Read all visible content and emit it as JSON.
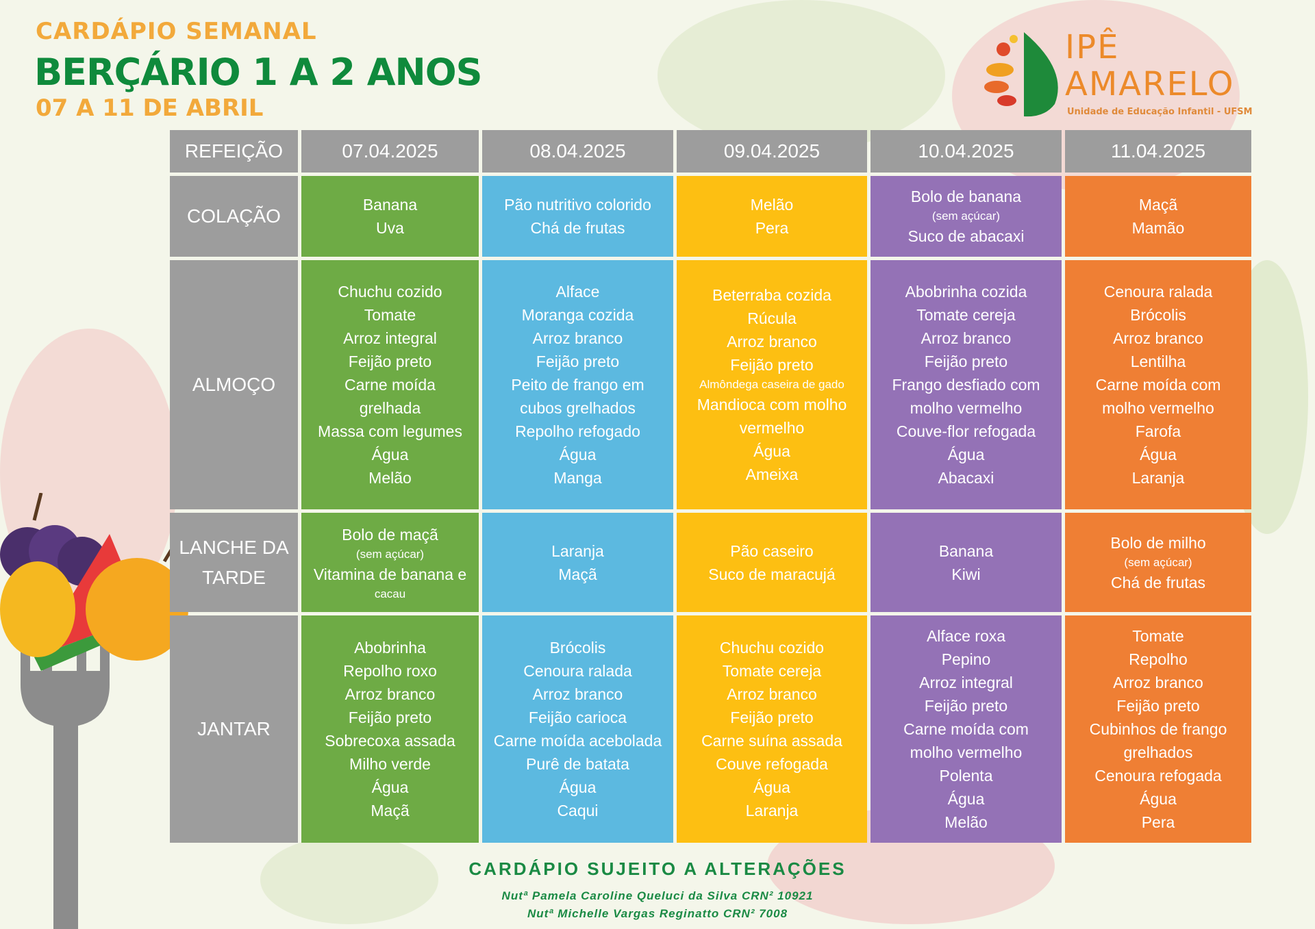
{
  "header": {
    "line1": "CARDÁPIO SEMANAL",
    "line2": "BERÇÁRIO 1 A 2 ANOS",
    "line3": "07 A 11 DE ABRIL"
  },
  "logo": {
    "name_line1": "IPÊ",
    "name_line2": "AMARELO",
    "subtitle": "Unidade de Educação Infantil - UFSM"
  },
  "colors": {
    "header_gray": "#9d9d9d",
    "day_colors": [
      "#6eab45",
      "#5cb9e0",
      "#fdbf12",
      "#9472b6",
      "#ef7f34"
    ],
    "title_orange": "#f2a93b",
    "title_green": "#0f8a3c"
  },
  "table": {
    "corner_label": "REFEIÇÃO",
    "days": [
      "07.04.2025",
      "08.04.2025",
      "09.04.2025",
      "10.04.2025",
      "11.04.2025"
    ],
    "meals": [
      {
        "label": "COLAÇÃO",
        "cells": [
          [
            {
              "text": "Banana"
            },
            {
              "text": "Uva"
            }
          ],
          [
            {
              "text": "Pão nutritivo colorido"
            },
            {
              "text": "Chá de frutas"
            }
          ],
          [
            {
              "text": "Melão"
            },
            {
              "text": "Pera"
            }
          ],
          [
            {
              "text": "Bolo de banana"
            },
            {
              "text": "(sem açúcar)",
              "small": true
            },
            {
              "text": "Suco de abacaxi"
            }
          ],
          [
            {
              "text": "Maçã"
            },
            {
              "text": "Mamão"
            }
          ]
        ]
      },
      {
        "label": "ALMOÇO",
        "cells": [
          [
            {
              "text": "Chuchu cozido"
            },
            {
              "text": "Tomate"
            },
            {
              "text": "Arroz integral"
            },
            {
              "text": "Feijão preto"
            },
            {
              "text": "Carne moída"
            },
            {
              "text": "grelhada"
            },
            {
              "text": "Massa com legumes"
            },
            {
              "text": "Água"
            },
            {
              "text": "Melão"
            }
          ],
          [
            {
              "text": "Alface"
            },
            {
              "text": "Moranga cozida"
            },
            {
              "text": "Arroz branco"
            },
            {
              "text": "Feijão preto"
            },
            {
              "text": "Peito de frango em"
            },
            {
              "text": "cubos grelhados"
            },
            {
              "text": "Repolho refogado"
            },
            {
              "text": "Água"
            },
            {
              "text": "Manga"
            }
          ],
          [
            {
              "text": "Beterraba cozida"
            },
            {
              "text": "Rúcula"
            },
            {
              "text": "Arroz branco"
            },
            {
              "text": "Feijão preto"
            },
            {
              "text": "Almôndega caseira de gado",
              "small": true
            },
            {
              "text": "Mandioca com molho"
            },
            {
              "text": "vermelho"
            },
            {
              "text": "Água"
            },
            {
              "text": "Ameixa"
            }
          ],
          [
            {
              "text": "Abobrinha cozida"
            },
            {
              "text": "Tomate cereja"
            },
            {
              "text": "Arroz branco"
            },
            {
              "text": "Feijão preto"
            },
            {
              "text": "Frango desfiado com"
            },
            {
              "text": "molho vermelho"
            },
            {
              "text": "Couve-flor refogada"
            },
            {
              "text": "Água"
            },
            {
              "text": "Abacaxi"
            }
          ],
          [
            {
              "text": "Cenoura ralada"
            },
            {
              "text": "Brócolis"
            },
            {
              "text": "Arroz branco"
            },
            {
              "text": "Lentilha"
            },
            {
              "text": "Carne moída com"
            },
            {
              "text": "molho vermelho"
            },
            {
              "text": "Farofa"
            },
            {
              "text": "Água"
            },
            {
              "text": "Laranja"
            }
          ]
        ]
      },
      {
        "label": "LANCHE DA TARDE",
        "cells": [
          [
            {
              "text": "Bolo de maçã"
            },
            {
              "text": "(sem açúcar)",
              "small": true
            },
            {
              "text": "Vitamina de banana e"
            },
            {
              "text": "cacau",
              "small": true
            }
          ],
          [
            {
              "text": "Laranja"
            },
            {
              "text": "Maçã"
            }
          ],
          [
            {
              "text": "Pão caseiro"
            },
            {
              "text": "Suco de maracujá"
            }
          ],
          [
            {
              "text": "Banana"
            },
            {
              "text": "Kiwi"
            }
          ],
          [
            {
              "text": "Bolo de milho"
            },
            {
              "text": "(sem açúcar)",
              "small": true
            },
            {
              "text": "Chá de frutas"
            }
          ]
        ]
      },
      {
        "label": "JANTAR",
        "cells": [
          [
            {
              "text": "Abobrinha"
            },
            {
              "text": "Repolho roxo"
            },
            {
              "text": "Arroz branco"
            },
            {
              "text": "Feijão preto"
            },
            {
              "text": "Sobrecoxa assada"
            },
            {
              "text": "Milho verde"
            },
            {
              "text": "Água"
            },
            {
              "text": "Maçã"
            }
          ],
          [
            {
              "text": "Brócolis"
            },
            {
              "text": "Cenoura ralada"
            },
            {
              "text": "Arroz branco"
            },
            {
              "text": "Feijão carioca"
            },
            {
              "text": "Carne moída acebolada"
            },
            {
              "text": "Purê de batata"
            },
            {
              "text": "Água"
            },
            {
              "text": "Caqui"
            }
          ],
          [
            {
              "text": "Chuchu cozido"
            },
            {
              "text": "Tomate cereja"
            },
            {
              "text": "Arroz branco"
            },
            {
              "text": "Feijão preto"
            },
            {
              "text": "Carne suína assada"
            },
            {
              "text": "Couve refogada"
            },
            {
              "text": "Água"
            },
            {
              "text": "Laranja"
            }
          ],
          [
            {
              "text": "Alface roxa"
            },
            {
              "text": "Pepino"
            },
            {
              "text": "Arroz integral"
            },
            {
              "text": "Feijão preto"
            },
            {
              "text": "Carne moída com"
            },
            {
              "text": "molho vermelho"
            },
            {
              "text": "Polenta"
            },
            {
              "text": "Água"
            },
            {
              "text": "Melão"
            }
          ],
          [
            {
              "text": "Tomate"
            },
            {
              "text": "Repolho"
            },
            {
              "text": "Arroz branco"
            },
            {
              "text": "Feijão preto"
            },
            {
              "text": "Cubinhos de frango"
            },
            {
              "text": "grelhados"
            },
            {
              "text": "Cenoura refogada"
            },
            {
              "text": "Água"
            },
            {
              "text": "Pera"
            }
          ]
        ]
      }
    ]
  },
  "footer": {
    "notice": "CARDÁPIO SUJEITO A ALTERAÇÕES",
    "nutritionist1": "Nutª Pamela Caroline Queluci da Silva CRN² 10921",
    "nutritionist2": "Nutª Michelle Vargas Reginatto CRN² 7008"
  }
}
